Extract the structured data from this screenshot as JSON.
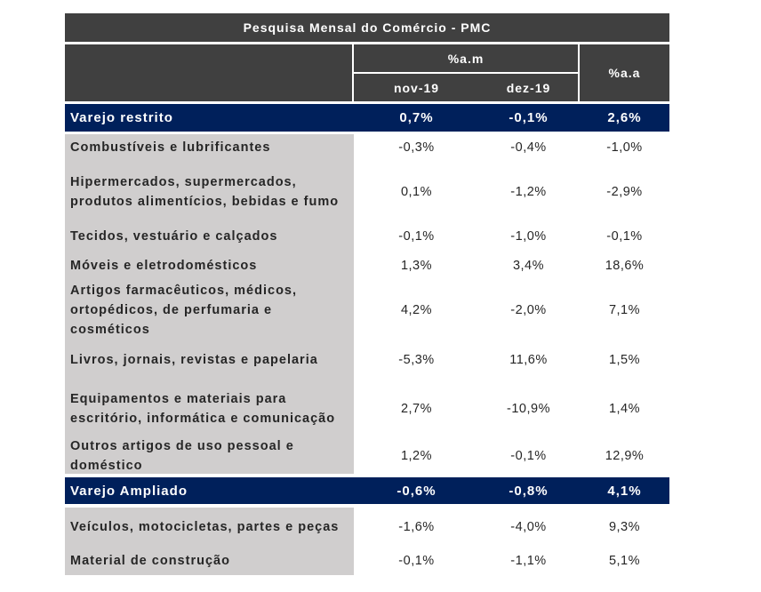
{
  "title": "Pesquisa Mensal do Comércio - PMC",
  "headers": {
    "am": "%a.m",
    "aa": "%a.a",
    "nov": "nov-19",
    "dez": "dez-19"
  },
  "rows": [
    {
      "type": "group",
      "label": "Varejo restrito",
      "nov": "0,7%",
      "dez": "-0,1%",
      "aa": "2,6%"
    },
    {
      "type": "item",
      "label": "Combustíveis e lubrificantes",
      "nov": "-0,3%",
      "dez": "-0,4%",
      "aa": "-1,0%"
    },
    {
      "type": "item",
      "label": "Hipermercados, supermercados, produtos alimentícios, bebidas e fumo",
      "nov": "0,1%",
      "dez": "-1,2%",
      "aa": "-2,9%"
    },
    {
      "type": "item",
      "label": "Tecidos, vestuário e calçados",
      "nov": "-0,1%",
      "dez": "-1,0%",
      "aa": "-0,1%"
    },
    {
      "type": "item",
      "label": "Móveis e eletrodomésticos",
      "nov": "1,3%",
      "dez": "3,4%",
      "aa": "18,6%"
    },
    {
      "type": "item",
      "label": "Artigos farmacêuticos, médicos, ortopédicos, de perfumaria e cosméticos",
      "nov": "4,2%",
      "dez": "-2,0%",
      "aa": "7,1%"
    },
    {
      "type": "item",
      "label": "Livros, jornais, revistas e papelaria",
      "nov": "-5,3%",
      "dez": "11,6%",
      "aa": "1,5%"
    },
    {
      "type": "item",
      "label": "Equipamentos e materiais para escritório, informática e comunicação",
      "nov": "2,7%",
      "dez": "-10,9%",
      "aa": "1,4%"
    },
    {
      "type": "item",
      "label": "Outros artigos de uso pessoal e doméstico",
      "nov": "1,2%",
      "dez": "-0,1%",
      "aa": "12,9%"
    },
    {
      "type": "group",
      "label": "Varejo Ampliado",
      "nov": "-0,6%",
      "dez": "-0,8%",
      "aa": "4,1%"
    },
    {
      "type": "item",
      "label": "Veículos, motocicletas, partes e peças",
      "nov": "-1,6%",
      "dez": "-4,0%",
      "aa": "9,3%"
    },
    {
      "type": "item",
      "label": "Material de construção",
      "nov": "-0,1%",
      "dez": "-1,1%",
      "aa": "5,1%"
    }
  ],
  "colors": {
    "header": "#404040",
    "group": "#00205b",
    "label_bg": "#d0cece"
  }
}
